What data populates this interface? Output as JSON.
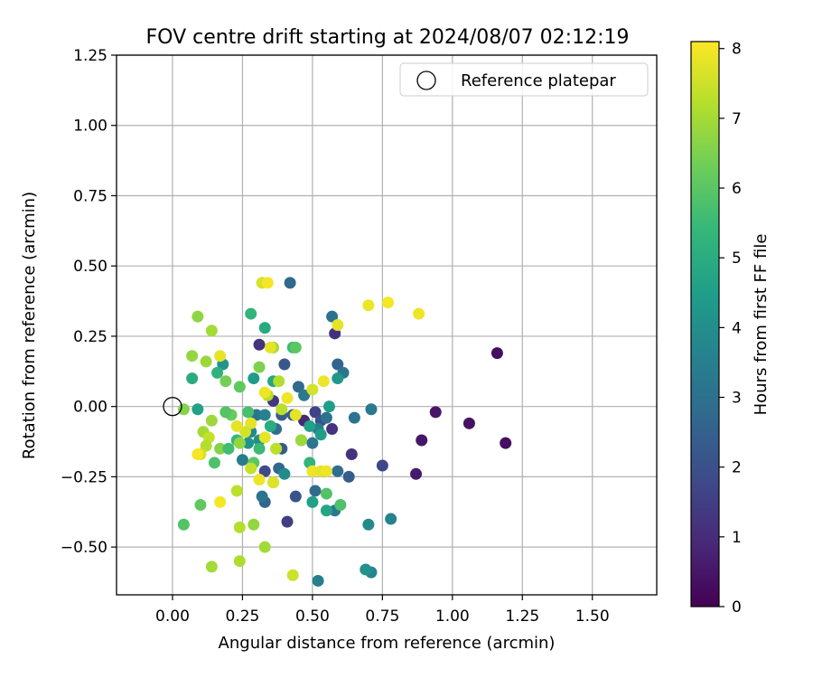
{
  "chart_data": {
    "type": "scatter",
    "title": "FOV centre drift starting at 2024/08/07 02:12:19",
    "xlabel": "Angular distance from reference (arcmin)",
    "ylabel": "Rotation from reference (arcmin)",
    "xlim": [
      -0.2,
      1.73
    ],
    "ylim": [
      -0.67,
      1.25
    ],
    "xticks": [
      0.0,
      0.25,
      0.5,
      0.75,
      1.0,
      1.25,
      1.5
    ],
    "xtick_labels": [
      "0.00",
      "0.25",
      "0.50",
      "0.75",
      "1.00",
      "1.25",
      "1.50"
    ],
    "yticks": [
      -0.5,
      -0.25,
      0.0,
      0.25,
      0.5,
      0.75,
      1.0,
      1.25
    ],
    "ytick_labels": [
      "−0.50",
      "−0.25",
      "0.00",
      "0.25",
      "0.50",
      "0.75",
      "1.00",
      "1.25"
    ],
    "grid": true,
    "legend": {
      "position": "top-right",
      "entries": [
        "Reference platepar"
      ]
    },
    "reference_point": {
      "x": 0.0,
      "y": 0.0
    },
    "colorbar": {
      "label": "Hours from first FF file",
      "colormap": "viridis",
      "range": [
        0,
        8.1
      ],
      "ticks": [
        0,
        1,
        2,
        3,
        4,
        5,
        6,
        7,
        8
      ],
      "tick_labels": [
        "0",
        "1",
        "2",
        "3",
        "4",
        "5",
        "6",
        "7",
        "8"
      ]
    },
    "points": [
      {
        "x": 1.16,
        "y": 0.19,
        "c": 0.3
      },
      {
        "x": 1.19,
        "y": -0.13,
        "c": 0.3
      },
      {
        "x": 1.06,
        "y": -0.06,
        "c": 0.4
      },
      {
        "x": 0.94,
        "y": -0.02,
        "c": 0.5
      },
      {
        "x": 0.89,
        "y": -0.12,
        "c": 0.5
      },
      {
        "x": 0.87,
        "y": -0.24,
        "c": 0.6
      },
      {
        "x": 0.75,
        "y": -0.21,
        "c": 1.7
      },
      {
        "x": 0.64,
        "y": -0.17,
        "c": 1.2
      },
      {
        "x": 0.58,
        "y": 0.26,
        "c": 1.1
      },
      {
        "x": 0.57,
        "y": -0.08,
        "c": 1.2
      },
      {
        "x": 0.47,
        "y": -0.05,
        "c": 0.9
      },
      {
        "x": 0.41,
        "y": -0.41,
        "c": 1.5
      },
      {
        "x": 0.36,
        "y": 0.02,
        "c": 1.3
      },
      {
        "x": 0.31,
        "y": 0.22,
        "c": 1.2
      },
      {
        "x": 0.33,
        "y": -0.23,
        "c": 1.8
      },
      {
        "x": 0.44,
        "y": -0.32,
        "c": 2.1
      },
      {
        "x": 0.51,
        "y": -0.02,
        "c": 1.6
      },
      {
        "x": 0.53,
        "y": -0.05,
        "c": 2.0
      },
      {
        "x": 0.39,
        "y": -0.15,
        "c": 2.3
      },
      {
        "x": 0.42,
        "y": 0.44,
        "c": 2.7
      },
      {
        "x": 0.57,
        "y": 0.32,
        "c": 3.0
      },
      {
        "x": 0.59,
        "y": 0.15,
        "c": 2.6
      },
      {
        "x": 0.61,
        "y": 0.12,
        "c": 3.2
      },
      {
        "x": 0.4,
        "y": 0.15,
        "c": 2.2
      },
      {
        "x": 0.45,
        "y": 0.07,
        "c": 2.8
      },
      {
        "x": 0.47,
        "y": 0.04,
        "c": 3.3
      },
      {
        "x": 0.39,
        "y": -0.03,
        "c": 2.4
      },
      {
        "x": 0.43,
        "y": -0.03,
        "c": 2.5
      },
      {
        "x": 0.5,
        "y": -0.13,
        "c": 3.2
      },
      {
        "x": 0.55,
        "y": -0.04,
        "c": 3.0
      },
      {
        "x": 0.52,
        "y": -0.08,
        "c": 3.5
      },
      {
        "x": 0.46,
        "y": -0.12,
        "c": 3.7
      },
      {
        "x": 0.37,
        "y": -0.08,
        "c": 2.9
      },
      {
        "x": 0.3,
        "y": -0.03,
        "c": 3.1
      },
      {
        "x": 0.33,
        "y": -0.03,
        "c": 3.6
      },
      {
        "x": 0.28,
        "y": -0.09,
        "c": 3.8
      },
      {
        "x": 0.35,
        "y": -0.07,
        "c": 4.4
      },
      {
        "x": 0.31,
        "y": -0.12,
        "c": 4.0
      },
      {
        "x": 0.25,
        "y": -0.19,
        "c": 3.4
      },
      {
        "x": 0.27,
        "y": -0.13,
        "c": 4.2
      },
      {
        "x": 0.38,
        "y": -0.22,
        "c": 2.7
      },
      {
        "x": 0.4,
        "y": -0.24,
        "c": 3.9
      },
      {
        "x": 0.33,
        "y": -0.34,
        "c": 2.6
      },
      {
        "x": 0.32,
        "y": -0.32,
        "c": 3.1
      },
      {
        "x": 0.51,
        "y": -0.3,
        "c": 2.8
      },
      {
        "x": 0.52,
        "y": -0.62,
        "c": 3.5
      },
      {
        "x": 0.58,
        "y": -0.37,
        "c": 3.3
      },
      {
        "x": 0.63,
        "y": -0.25,
        "c": 2.4
      },
      {
        "x": 0.59,
        "y": -0.23,
        "c": 2.9
      },
      {
        "x": 0.65,
        "y": -0.04,
        "c": 3.1
      },
      {
        "x": 0.71,
        "y": -0.01,
        "c": 3.3
      },
      {
        "x": 0.78,
        "y": -0.4,
        "c": 3.6
      },
      {
        "x": 0.7,
        "y": -0.42,
        "c": 3.9
      },
      {
        "x": 0.71,
        "y": -0.59,
        "c": 3.7
      },
      {
        "x": 0.69,
        "y": -0.58,
        "c": 4.1
      },
      {
        "x": 0.59,
        "y": 0.1,
        "c": 4.3
      },
      {
        "x": 0.56,
        "y": 0.0,
        "c": 4.5
      },
      {
        "x": 0.53,
        "y": -0.1,
        "c": 4.5
      },
      {
        "x": 0.49,
        "y": -0.07,
        "c": 4.6
      },
      {
        "x": 0.5,
        "y": -0.34,
        "c": 4.6
      },
      {
        "x": 0.55,
        "y": -0.37,
        "c": 4.7
      },
      {
        "x": 0.6,
        "y": -0.35,
        "c": 5.8
      },
      {
        "x": 0.55,
        "y": -0.31,
        "c": 5.9
      },
      {
        "x": 0.49,
        "y": -0.2,
        "c": 5.3
      },
      {
        "x": 0.36,
        "y": 0.09,
        "c": 4.8
      },
      {
        "x": 0.29,
        "y": 0.1,
        "c": 4.4
      },
      {
        "x": 0.33,
        "y": 0.28,
        "c": 4.9
      },
      {
        "x": 0.28,
        "y": 0.33,
        "c": 5.3
      },
      {
        "x": 0.43,
        "y": 0.21,
        "c": 5.6
      },
      {
        "x": 0.44,
        "y": 0.21,
        "c": 6.0
      },
      {
        "x": 0.18,
        "y": 0.15,
        "c": 4.2
      },
      {
        "x": 0.16,
        "y": 0.12,
        "c": 5.2
      },
      {
        "x": 0.07,
        "y": 0.1,
        "c": 5.0
      },
      {
        "x": 0.09,
        "y": -0.01,
        "c": 4.6
      },
      {
        "x": 0.04,
        "y": -0.42,
        "c": 5.9
      },
      {
        "x": 0.1,
        "y": -0.35,
        "c": 6.1
      },
      {
        "x": 0.15,
        "y": -0.2,
        "c": 5.8
      },
      {
        "x": 0.17,
        "y": -0.15,
        "c": 6.6
      },
      {
        "x": 0.2,
        "y": -0.15,
        "c": 5.6
      },
      {
        "x": 0.23,
        "y": -0.12,
        "c": 5.4
      },
      {
        "x": 0.21,
        "y": -0.03,
        "c": 6.2
      },
      {
        "x": 0.19,
        "y": -0.02,
        "c": 5.9
      },
      {
        "x": 0.24,
        "y": -0.13,
        "c": 6.8
      },
      {
        "x": 0.27,
        "y": -0.02,
        "c": 5.7
      },
      {
        "x": 0.29,
        "y": -0.2,
        "c": 6.0
      },
      {
        "x": 0.31,
        "y": -0.15,
        "c": 5.5
      },
      {
        "x": 0.35,
        "y": -0.07,
        "c": 5.0
      },
      {
        "x": 0.37,
        "y": -0.15,
        "c": 6.5
      },
      {
        "x": 0.36,
        "y": -0.27,
        "c": 6.3
      },
      {
        "x": 0.24,
        "y": 0.07,
        "c": 6.1
      },
      {
        "x": 0.19,
        "y": 0.09,
        "c": 6.4
      },
      {
        "x": 0.12,
        "y": 0.16,
        "c": 6.9
      },
      {
        "x": 0.09,
        "y": 0.32,
        "c": 6.7
      },
      {
        "x": 0.14,
        "y": 0.27,
        "c": 7.0
      },
      {
        "x": 0.07,
        "y": 0.18,
        "c": 6.8
      },
      {
        "x": 0.04,
        "y": -0.01,
        "c": 6.6
      },
      {
        "x": 0.11,
        "y": -0.09,
        "c": 7.0
      },
      {
        "x": 0.13,
        "y": -0.11,
        "c": 7.4
      },
      {
        "x": 0.14,
        "y": -0.05,
        "c": 6.9
      },
      {
        "x": 0.12,
        "y": -0.14,
        "c": 7.2
      },
      {
        "x": 0.1,
        "y": -0.17,
        "c": 7.6
      },
      {
        "x": 0.14,
        "y": -0.57,
        "c": 7.0
      },
      {
        "x": 0.24,
        "y": -0.55,
        "c": 7.1
      },
      {
        "x": 0.24,
        "y": -0.43,
        "c": 7.2
      },
      {
        "x": 0.29,
        "y": -0.42,
        "c": 6.8
      },
      {
        "x": 0.33,
        "y": -0.5,
        "c": 7.0
      },
      {
        "x": 0.23,
        "y": -0.3,
        "c": 7.3
      },
      {
        "x": 0.31,
        "y": 0.14,
        "c": 6.5
      },
      {
        "x": 0.32,
        "y": 0.44,
        "c": 7.6
      },
      {
        "x": 0.36,
        "y": 0.21,
        "c": 7.0
      },
      {
        "x": 0.34,
        "y": 0.04,
        "c": 7.2
      },
      {
        "x": 0.38,
        "y": 0.09,
        "c": 7.2
      },
      {
        "x": 0.39,
        "y": -0.01,
        "c": 7.3
      },
      {
        "x": 0.28,
        "y": -0.06,
        "c": 7.8
      },
      {
        "x": 0.26,
        "y": -0.09,
        "c": 7.6
      },
      {
        "x": 0.28,
        "y": -0.22,
        "c": 7.4
      },
      {
        "x": 0.31,
        "y": -0.26,
        "c": 7.9
      },
      {
        "x": 0.36,
        "y": -0.27,
        "c": 7.7
      },
      {
        "x": 0.37,
        "y": -0.15,
        "c": 7.3
      },
      {
        "x": 0.43,
        "y": -0.6,
        "c": 7.5
      },
      {
        "x": 0.46,
        "y": -0.12,
        "c": 6.9
      },
      {
        "x": 0.5,
        "y": 0.06,
        "c": 7.6
      },
      {
        "x": 0.44,
        "y": -0.03,
        "c": 7.8
      },
      {
        "x": 0.41,
        "y": 0.03,
        "c": 7.9
      },
      {
        "x": 0.5,
        "y": -0.23,
        "c": 7.9
      },
      {
        "x": 0.53,
        "y": -0.23,
        "c": 7.8
      },
      {
        "x": 0.55,
        "y": -0.23,
        "c": 7.9
      },
      {
        "x": 0.54,
        "y": 0.09,
        "c": 7.9
      },
      {
        "x": 0.59,
        "y": 0.29,
        "c": 7.8
      },
      {
        "x": 0.7,
        "y": 0.36,
        "c": 7.9
      },
      {
        "x": 0.77,
        "y": 0.37,
        "c": 8.0
      },
      {
        "x": 0.88,
        "y": 0.33,
        "c": 7.9
      },
      {
        "x": 0.34,
        "y": 0.44,
        "c": 8.0
      },
      {
        "x": 0.35,
        "y": 0.21,
        "c": 7.8
      },
      {
        "x": 0.33,
        "y": 0.05,
        "c": 7.9
      },
      {
        "x": 0.17,
        "y": 0.18,
        "c": 7.8
      },
      {
        "x": 0.17,
        "y": -0.34,
        "c": 8.0
      },
      {
        "x": 0.23,
        "y": -0.07,
        "c": 7.8
      },
      {
        "x": 0.33,
        "y": -0.11,
        "c": 7.8
      },
      {
        "x": 0.09,
        "y": -0.17,
        "c": 8.0
      }
    ]
  }
}
